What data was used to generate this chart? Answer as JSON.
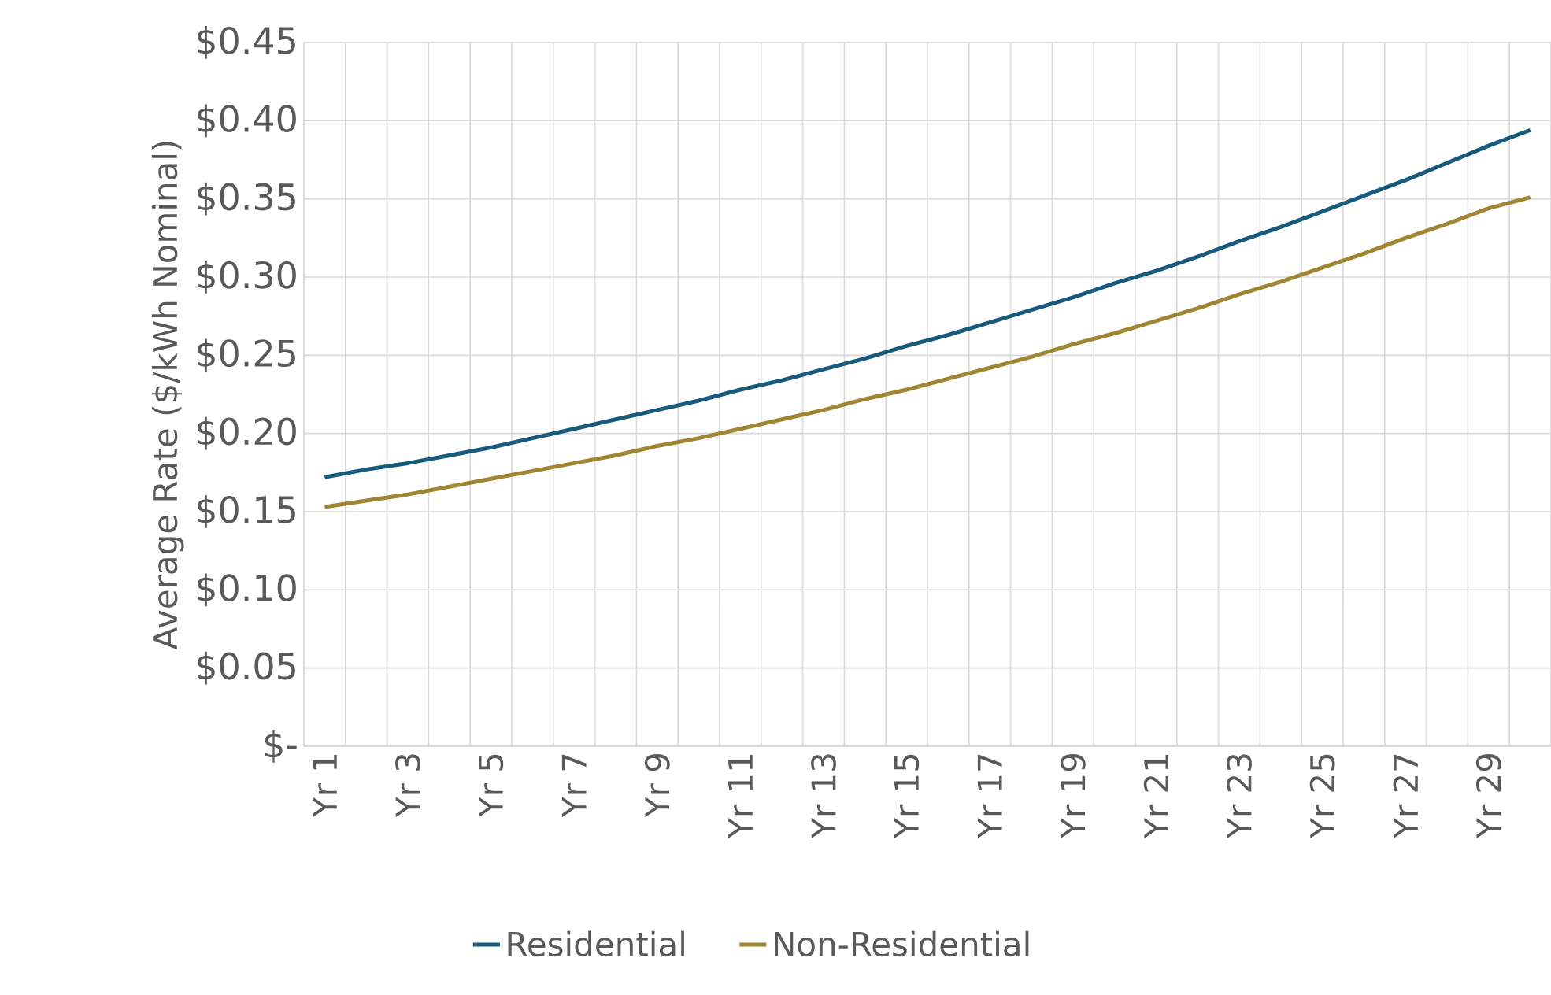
{
  "chart_data": {
    "type": "line",
    "ylabel": "Average Rate ($/kWh Nominal)",
    "categories": [
      "Yr 1",
      null,
      "Yr 3",
      null,
      "Yr 5",
      null,
      "Yr 7",
      null,
      "Yr 9",
      null,
      "Yr 11",
      null,
      "Yr 13",
      null,
      "Yr 15",
      null,
      "Yr 17",
      null,
      "Yr 19",
      null,
      "Yr 21",
      null,
      "Yr 23",
      null,
      "Yr 25",
      null,
      "Yr 27",
      null,
      "Yr 29",
      null
    ],
    "series": [
      {
        "name": "Residential",
        "color": "#175a7c",
        "values": [
          0.172,
          0.177,
          0.181,
          0.186,
          0.191,
          0.197,
          0.203,
          0.209,
          0.215,
          0.221,
          0.228,
          0.234,
          0.241,
          0.248,
          0.256,
          0.263,
          0.271,
          0.279,
          0.287,
          0.296,
          0.304,
          0.313,
          0.323,
          0.332,
          0.342,
          0.352,
          0.362,
          0.373,
          0.384,
          0.394
        ]
      },
      {
        "name": "Non-Residential",
        "color": "#a08532",
        "values": [
          0.153,
          0.157,
          0.161,
          0.166,
          0.171,
          0.176,
          0.181,
          0.186,
          0.192,
          0.197,
          0.203,
          0.209,
          0.215,
          0.222,
          0.228,
          0.235,
          0.242,
          0.249,
          0.257,
          0.264,
          0.272,
          0.28,
          0.289,
          0.297,
          0.306,
          0.315,
          0.325,
          0.334,
          0.344,
          0.351
        ]
      }
    ],
    "ylim": [
      0,
      0.45
    ],
    "yticks": [
      {
        "value": 0,
        "label": "$-"
      },
      {
        "value": 0.05,
        "label": "$0.05"
      },
      {
        "value": 0.1,
        "label": "$0.10"
      },
      {
        "value": 0.15,
        "label": "$0.15"
      },
      {
        "value": 0.2,
        "label": "$0.20"
      },
      {
        "value": 0.25,
        "label": "$0.25"
      },
      {
        "value": 0.3,
        "label": "$0.30"
      },
      {
        "value": 0.35,
        "label": "$0.35"
      },
      {
        "value": 0.4,
        "label": "$0.40"
      },
      {
        "value": 0.45,
        "label": "$0.45"
      }
    ],
    "grid": true,
    "legend": "bottom",
    "line_style": "solid",
    "marker": "none"
  }
}
